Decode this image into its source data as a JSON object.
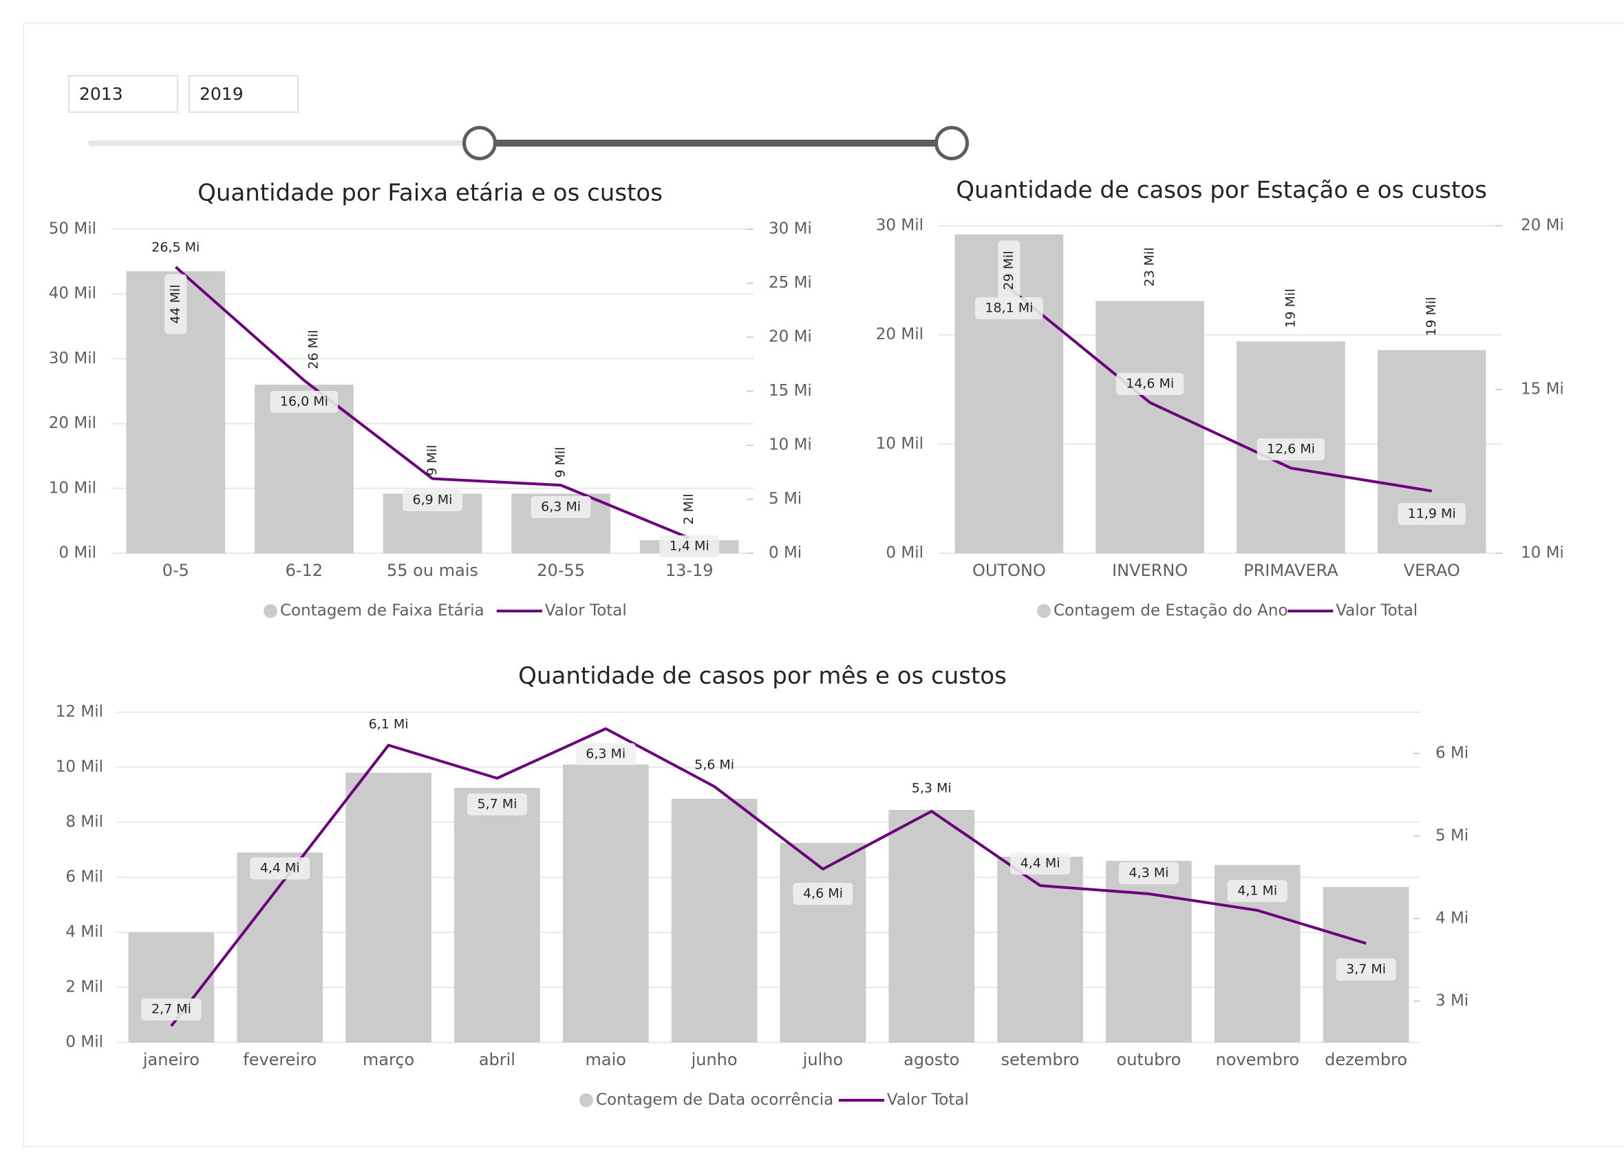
{
  "slicer": {
    "start_year": "2013",
    "end_year": "2019",
    "range_fraction": [
      0.5,
      1.0
    ]
  },
  "colors": {
    "bar": "#cbcbcb",
    "line": "#6b007b",
    "grid": "#e8e8e8"
  },
  "chart_data": [
    {
      "type": "bar",
      "title": "Quantidade por Faixa etária e os custos",
      "categories": [
        "0-5",
        "6-12",
        "55 ou mais",
        "20-55",
        "13-19"
      ],
      "series": [
        {
          "name": "Contagem de Faixa Etária",
          "type": "bar",
          "axis": "left",
          "values": [
            43.5,
            26,
            9.2,
            9.2,
            2
          ],
          "labels": [
            "44 Mil",
            "26 Mil",
            "9 Mil",
            "9 Mil",
            "2 Mil"
          ]
        },
        {
          "name": "Valor Total",
          "type": "line",
          "axis": "right",
          "values": [
            26.5,
            16.0,
            6.9,
            6.3,
            1.4
          ],
          "labels": [
            "26,5 Mi",
            "16,0 Mi",
            "6,9 Mi",
            "6,3 Mi",
            "1,4 Mi"
          ]
        }
      ],
      "left_axis": {
        "ticks": [
          "0 Mil",
          "10 Mil",
          "20 Mil",
          "30 Mil",
          "40 Mil",
          "50 Mil"
        ],
        "ylim": [
          0,
          50
        ]
      },
      "right_axis": {
        "ticks": [
          "0 Mi",
          "5 Mi",
          "10 Mi",
          "15 Mi",
          "20 Mi",
          "25 Mi",
          "30 Mi"
        ],
        "ylim": [
          0,
          30
        ]
      },
      "legend": "bottom",
      "grid": true
    },
    {
      "type": "bar",
      "title": "Quantidade de casos por Estação e os custos",
      "categories": [
        "OUTONO",
        "INVERNO",
        "PRIMAVERA",
        "VERAO"
      ],
      "series": [
        {
          "name": "Contagem de Estação do Ano",
          "type": "bar",
          "axis": "left",
          "values": [
            29.2,
            23.1,
            19.4,
            18.6
          ],
          "labels": [
            "29 Mil",
            "23 Mil",
            "19 Mil",
            "19 Mil"
          ]
        },
        {
          "name": "Valor Total",
          "type": "line",
          "axis": "right",
          "values": [
            18.1,
            14.6,
            12.6,
            11.9
          ],
          "labels": [
            "18,1 Mi",
            "14,6 Mi",
            "12,6 Mi",
            "11,9 Mi"
          ]
        }
      ],
      "left_axis": {
        "ticks": [
          "0 Mil",
          "10 Mil",
          "20 Mil",
          "30 Mil"
        ],
        "ylim": [
          0,
          30
        ]
      },
      "right_axis": {
        "ticks": [
          "10 Mi",
          "15 Mi",
          "20 Mi"
        ],
        "ylim": [
          10,
          20
        ]
      },
      "legend": "bottom",
      "grid": true
    },
    {
      "type": "bar",
      "title": "Quantidade de casos por mês e os custos",
      "categories": [
        "janeiro",
        "fevereiro",
        "março",
        "abril",
        "maio",
        "junho",
        "julho",
        "agosto",
        "setembro",
        "outubro",
        "novembro",
        "dezembro"
      ],
      "series": [
        {
          "name": "Contagem de Data ocorrência",
          "type": "bar",
          "axis": "left",
          "values": [
            4.0,
            6.9,
            9.8,
            9.25,
            10.1,
            8.85,
            7.25,
            8.45,
            6.75,
            6.6,
            6.45,
            5.65
          ]
        },
        {
          "name": "Valor Total",
          "type": "line",
          "axis": "right",
          "values": [
            2.7,
            4.4,
            6.1,
            5.7,
            6.3,
            5.6,
            4.6,
            5.3,
            4.4,
            4.3,
            4.1,
            3.7
          ],
          "labels": [
            "2,7 Mi",
            "4,4 Mi",
            "6,1 Mi",
            "5,7 Mi",
            "6,3 Mi",
            "5,6 Mi",
            "4,6 Mi",
            "5,3 Mi",
            "4,4 Mi",
            "4,3 Mi",
            "4,1 Mi",
            "3,7 Mi"
          ]
        }
      ],
      "left_axis": {
        "ticks": [
          "0 Mil",
          "2 Mil",
          "4 Mil",
          "6 Mil",
          "8 Mil",
          "10 Mil",
          "12 Mil"
        ],
        "ylim": [
          0,
          12
        ]
      },
      "right_axis": {
        "ticks": [
          "3 Mi",
          "4 Mi",
          "5 Mi",
          "6 Mi"
        ],
        "ylim": [
          2.5,
          6.5
        ]
      },
      "legend": "bottom",
      "grid": true
    }
  ]
}
